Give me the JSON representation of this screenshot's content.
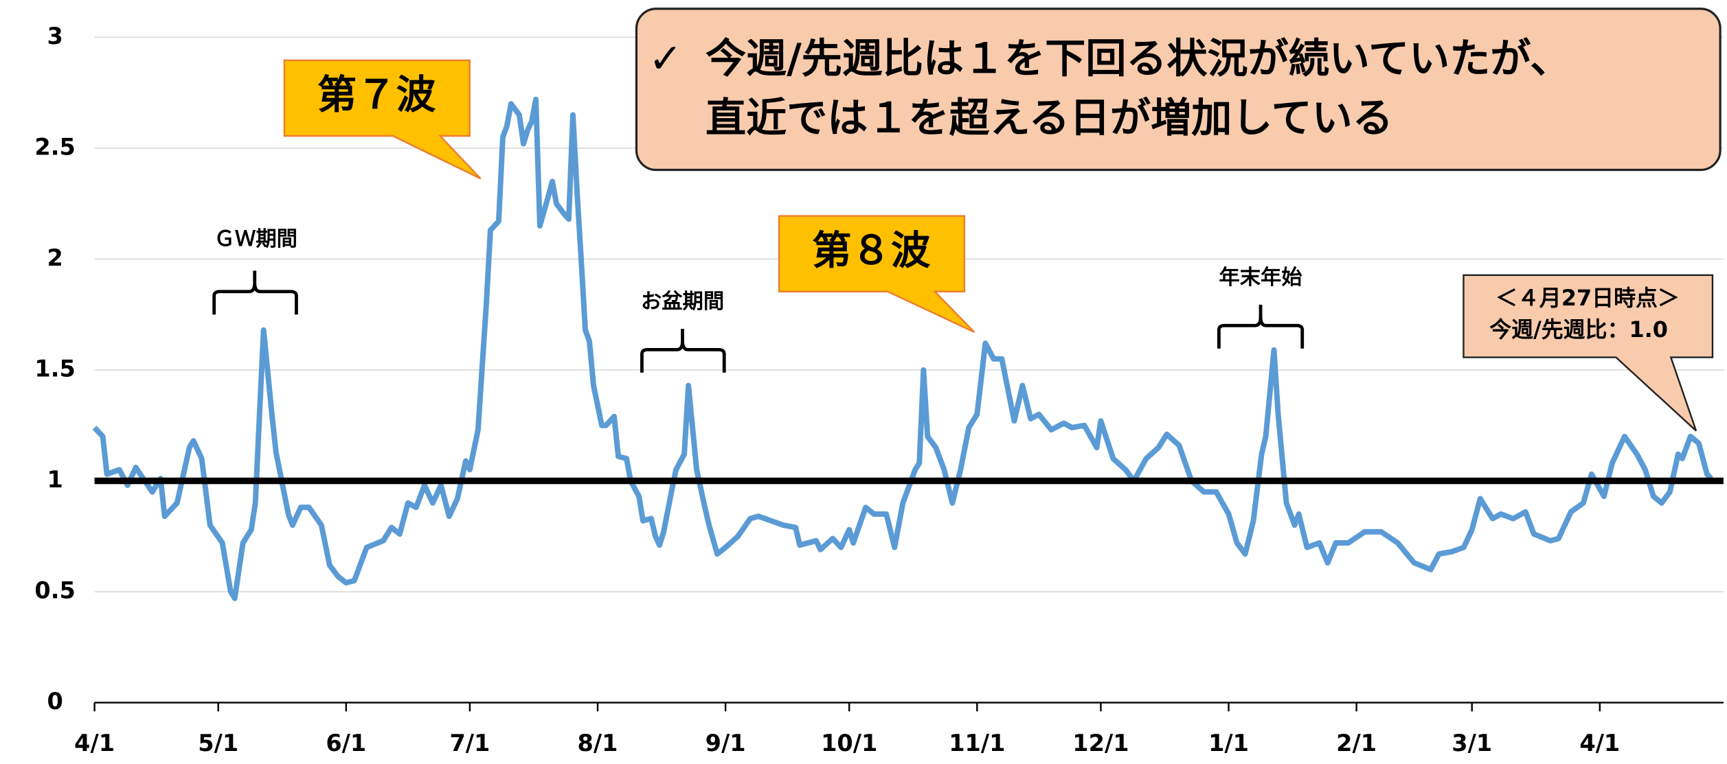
{
  "chart_data": {
    "type": "line",
    "annotations": {
      "wave7": "第７波",
      "wave8": "第８波",
      "gw": "ＧＷ期間",
      "obon": "お盆期間",
      "newyear": "年末年始",
      "summary_mark": "✓",
      "summary_line1": "今週/先週比は１を下回る状況が続いていたが、",
      "summary_line2": "直近では１を超える日が増加している",
      "latest_title": "＜４月27日時点＞",
      "latest_value": "今週/先週比：1.0"
    },
    "reference_line": 1,
    "xlim": [
      0,
      395
    ],
    "xticks": [
      {
        "value": 0,
        "label": "4/1"
      },
      {
        "value": 30,
        "label": "5/1"
      },
      {
        "value": 61,
        "label": "6/1"
      },
      {
        "value": 91,
        "label": "7/1"
      },
      {
        "value": 122,
        "label": "8/1"
      },
      {
        "value": 153,
        "label": "9/1"
      },
      {
        "value": 183,
        "label": "10/1"
      },
      {
        "value": 214,
        "label": "11/1"
      },
      {
        "value": 244,
        "label": "12/1"
      },
      {
        "value": 275,
        "label": "1/1"
      },
      {
        "value": 306,
        "label": "2/1"
      },
      {
        "value": 334,
        "label": "3/1"
      },
      {
        "value": 365,
        "label": "4/1"
      }
    ],
    "ylim": [
      0,
      3
    ],
    "yticks": [
      0,
      0.5,
      1,
      1.5,
      2,
      2.5,
      3
    ],
    "grid": true,
    "series": [
      {
        "color": "#5b9bd5",
        "x": [
          0,
          2,
          3,
          6,
          8,
          10,
          14,
          16,
          17,
          20,
          23,
          24,
          26,
          28,
          31,
          33,
          34,
          36,
          38,
          39,
          40,
          41,
          43,
          44,
          47,
          48,
          50,
          52,
          55,
          57,
          59,
          61,
          63,
          66,
          70,
          72,
          74,
          76,
          78,
          80,
          82,
          84,
          86,
          88,
          90,
          91,
          93,
          95,
          96,
          98,
          99,
          100,
          101,
          103,
          104,
          105,
          106,
          107,
          108,
          110,
          111,
          112,
          114,
          115,
          116,
          117,
          118,
          119,
          120,
          121,
          123,
          124,
          126,
          127,
          129,
          130,
          132,
          133,
          135,
          136,
          137,
          138,
          140,
          141,
          143,
          144,
          146,
          148,
          149,
          151,
          153,
          156,
          159,
          161,
          164,
          167,
          170,
          171,
          175,
          176,
          179,
          181,
          183,
          184,
          187,
          189,
          192,
          194,
          196,
          199,
          200,
          201,
          202,
          204,
          206,
          208,
          210,
          212,
          214,
          216,
          218,
          220,
          223,
          225,
          227,
          229,
          232,
          235,
          237,
          240,
          243,
          244,
          247,
          250,
          252,
          255,
          258,
          260,
          263,
          266,
          269,
          272,
          275,
          277,
          279,
          281,
          283,
          284,
          286,
          287,
          289,
          291,
          292,
          294,
          297,
          299,
          301,
          304,
          308,
          312,
          316,
          320,
          324,
          326,
          329,
          332,
          334,
          336,
          339,
          341,
          344,
          347,
          349,
          353,
          355,
          358,
          361,
          363,
          366,
          368,
          371,
          374,
          376,
          378,
          380,
          382,
          384,
          385,
          387,
          389,
          391,
          392
        ],
        "values": [
          1.24,
          1.2,
          1.03,
          1.05,
          0.98,
          1.06,
          0.95,
          1.01,
          0.84,
          0.9,
          1.15,
          1.18,
          1.1,
          0.8,
          0.72,
          0.5,
          0.47,
          0.72,
          0.78,
          0.9,
          1.3,
          1.68,
          1.3,
          1.13,
          0.85,
          0.8,
          0.88,
          0.88,
          0.8,
          0.62,
          0.57,
          0.54,
          0.55,
          0.7,
          0.73,
          0.79,
          0.76,
          0.9,
          0.88,
          0.98,
          0.9,
          0.98,
          0.84,
          0.92,
          1.09,
          1.05,
          1.23,
          1.8,
          2.13,
          2.17,
          2.55,
          2.6,
          2.7,
          2.65,
          2.52,
          2.58,
          2.62,
          2.72,
          2.15,
          2.28,
          2.35,
          2.25,
          2.2,
          2.18,
          2.65,
          2.3,
          2.0,
          1.68,
          1.63,
          1.43,
          1.25,
          1.25,
          1.29,
          1.11,
          1.1,
          1.0,
          0.93,
          0.82,
          0.83,
          0.75,
          0.71,
          0.77,
          0.96,
          1.05,
          1.12,
          1.43,
          1.05,
          0.88,
          0.8,
          0.67,
          0.7,
          0.75,
          0.83,
          0.84,
          0.82,
          0.8,
          0.79,
          0.71,
          0.73,
          0.69,
          0.74,
          0.7,
          0.78,
          0.72,
          0.88,
          0.85,
          0.85,
          0.7,
          0.9,
          1.05,
          1.08,
          1.5,
          1.2,
          1.15,
          1.05,
          0.9,
          1.05,
          1.24,
          1.3,
          1.62,
          1.55,
          1.55,
          1.27,
          1.43,
          1.28,
          1.3,
          1.23,
          1.26,
          1.24,
          1.25,
          1.15,
          1.27,
          1.1,
          1.05,
          1.0,
          1.1,
          1.15,
          1.21,
          1.16,
          1.0,
          0.95,
          0.95,
          0.85,
          0.72,
          0.67,
          0.82,
          1.12,
          1.2,
          1.59,
          1.3,
          0.9,
          0.8,
          0.85,
          0.7,
          0.72,
          0.63,
          0.72,
          0.72,
          0.77,
          0.77,
          0.72,
          0.63,
          0.6,
          0.67,
          0.68,
          0.7,
          0.78,
          0.92,
          0.83,
          0.85,
          0.83,
          0.86,
          0.76,
          0.73,
          0.74,
          0.86,
          0.9,
          1.03,
          0.93,
          1.08,
          1.2,
          1.12,
          1.05,
          0.93,
          0.9,
          0.95,
          1.12,
          1.1,
          1.2,
          1.17,
          1.03,
          1.01
        ]
      }
    ]
  }
}
